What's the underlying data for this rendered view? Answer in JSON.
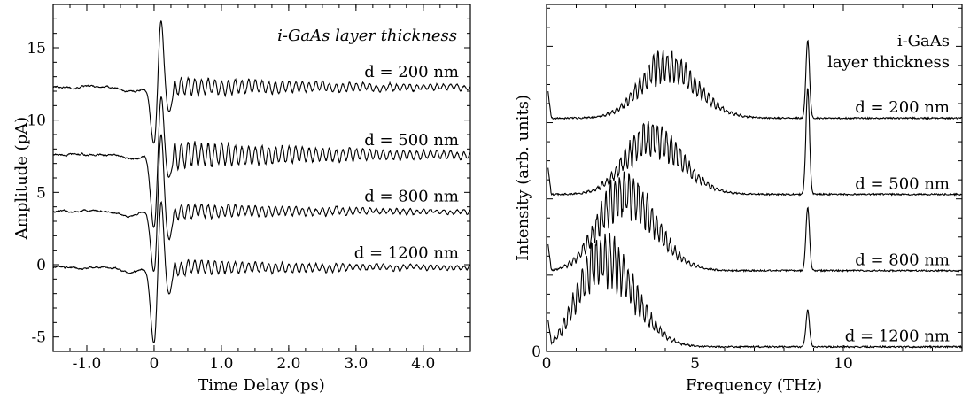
{
  "chart_data": [
    {
      "type": "line",
      "xlabel": "Time Delay (ps)",
      "ylabel": "Amplitude (pA)",
      "xlim": [
        -1.5,
        4.7
      ],
      "ylim": [
        -6,
        18
      ],
      "xticks": [
        -1.0,
        0,
        1.0,
        2.0,
        3.0,
        4.0
      ],
      "xtick_labels": [
        "-1.0",
        "0",
        "1.0",
        "2.0",
        "3.0",
        "4.0"
      ],
      "yticks": [
        -5,
        0,
        5,
        10,
        15
      ],
      "ytick_labels": [
        "-5",
        "0",
        "5",
        "10",
        "15"
      ],
      "legend_title": [
        "i-GaAs layer thickness"
      ],
      "series": [
        {
          "label": "d = 200 nm",
          "baseline": 12.3,
          "pulse_min": 8.3,
          "pulse_max": 17.4,
          "oscillation_amplitude": 0.6,
          "oscillation_period_ps": 0.1
        },
        {
          "label": "d = 500 nm",
          "baseline": 7.6,
          "pulse_min": 2.4,
          "pulse_max": 12.2,
          "oscillation_amplitude": 0.9,
          "oscillation_period_ps": 0.1
        },
        {
          "label": "d = 800 nm",
          "baseline": 3.7,
          "pulse_min": -0.6,
          "pulse_max": 9.5,
          "oscillation_amplitude": 0.5,
          "oscillation_period_ps": 0.1
        },
        {
          "label": "d = 1200 nm",
          "baseline": -0.2,
          "pulse_min": -5.6,
          "pulse_max": 5.1,
          "oscillation_amplitude": 0.5,
          "oscillation_period_ps": 0.1
        }
      ]
    },
    {
      "type": "line",
      "xlabel": "Frequency (THz)",
      "ylabel": "Intensity (arb. units)",
      "xlim": [
        0,
        14
      ],
      "ylim": [
        0,
        4.55
      ],
      "xticks": [
        0,
        5,
        10
      ],
      "xtick_labels": [
        "0",
        "5",
        "10"
      ],
      "yticks": [
        0
      ],
      "ytick_labels": [
        "0"
      ],
      "legend_title": [
        "i-GaAs",
        "layer thickness"
      ],
      "series": [
        {
          "label": "d = 200 nm",
          "offset": 3.05,
          "broad_peak_thz": 4.0,
          "broad_peak_height": 0.88,
          "sharp_peak_thz": 8.8,
          "sharp_peak_height": 1.03
        },
        {
          "label": "d = 500 nm",
          "offset": 2.05,
          "broad_peak_thz": 3.5,
          "broad_peak_height": 0.95,
          "sharp_peak_thz": 8.8,
          "sharp_peak_height": 1.4
        },
        {
          "label": "d = 800 nm",
          "offset": 1.05,
          "broad_peak_thz": 2.6,
          "broad_peak_height": 1.3,
          "sharp_peak_thz": 8.8,
          "sharp_peak_height": 0.83
        },
        {
          "label": "d = 1200 nm",
          "offset": 0.05,
          "broad_peak_thz": 1.9,
          "broad_peak_height": 1.5,
          "sharp_peak_thz": 8.8,
          "sharp_peak_height": 0.48
        }
      ]
    }
  ]
}
